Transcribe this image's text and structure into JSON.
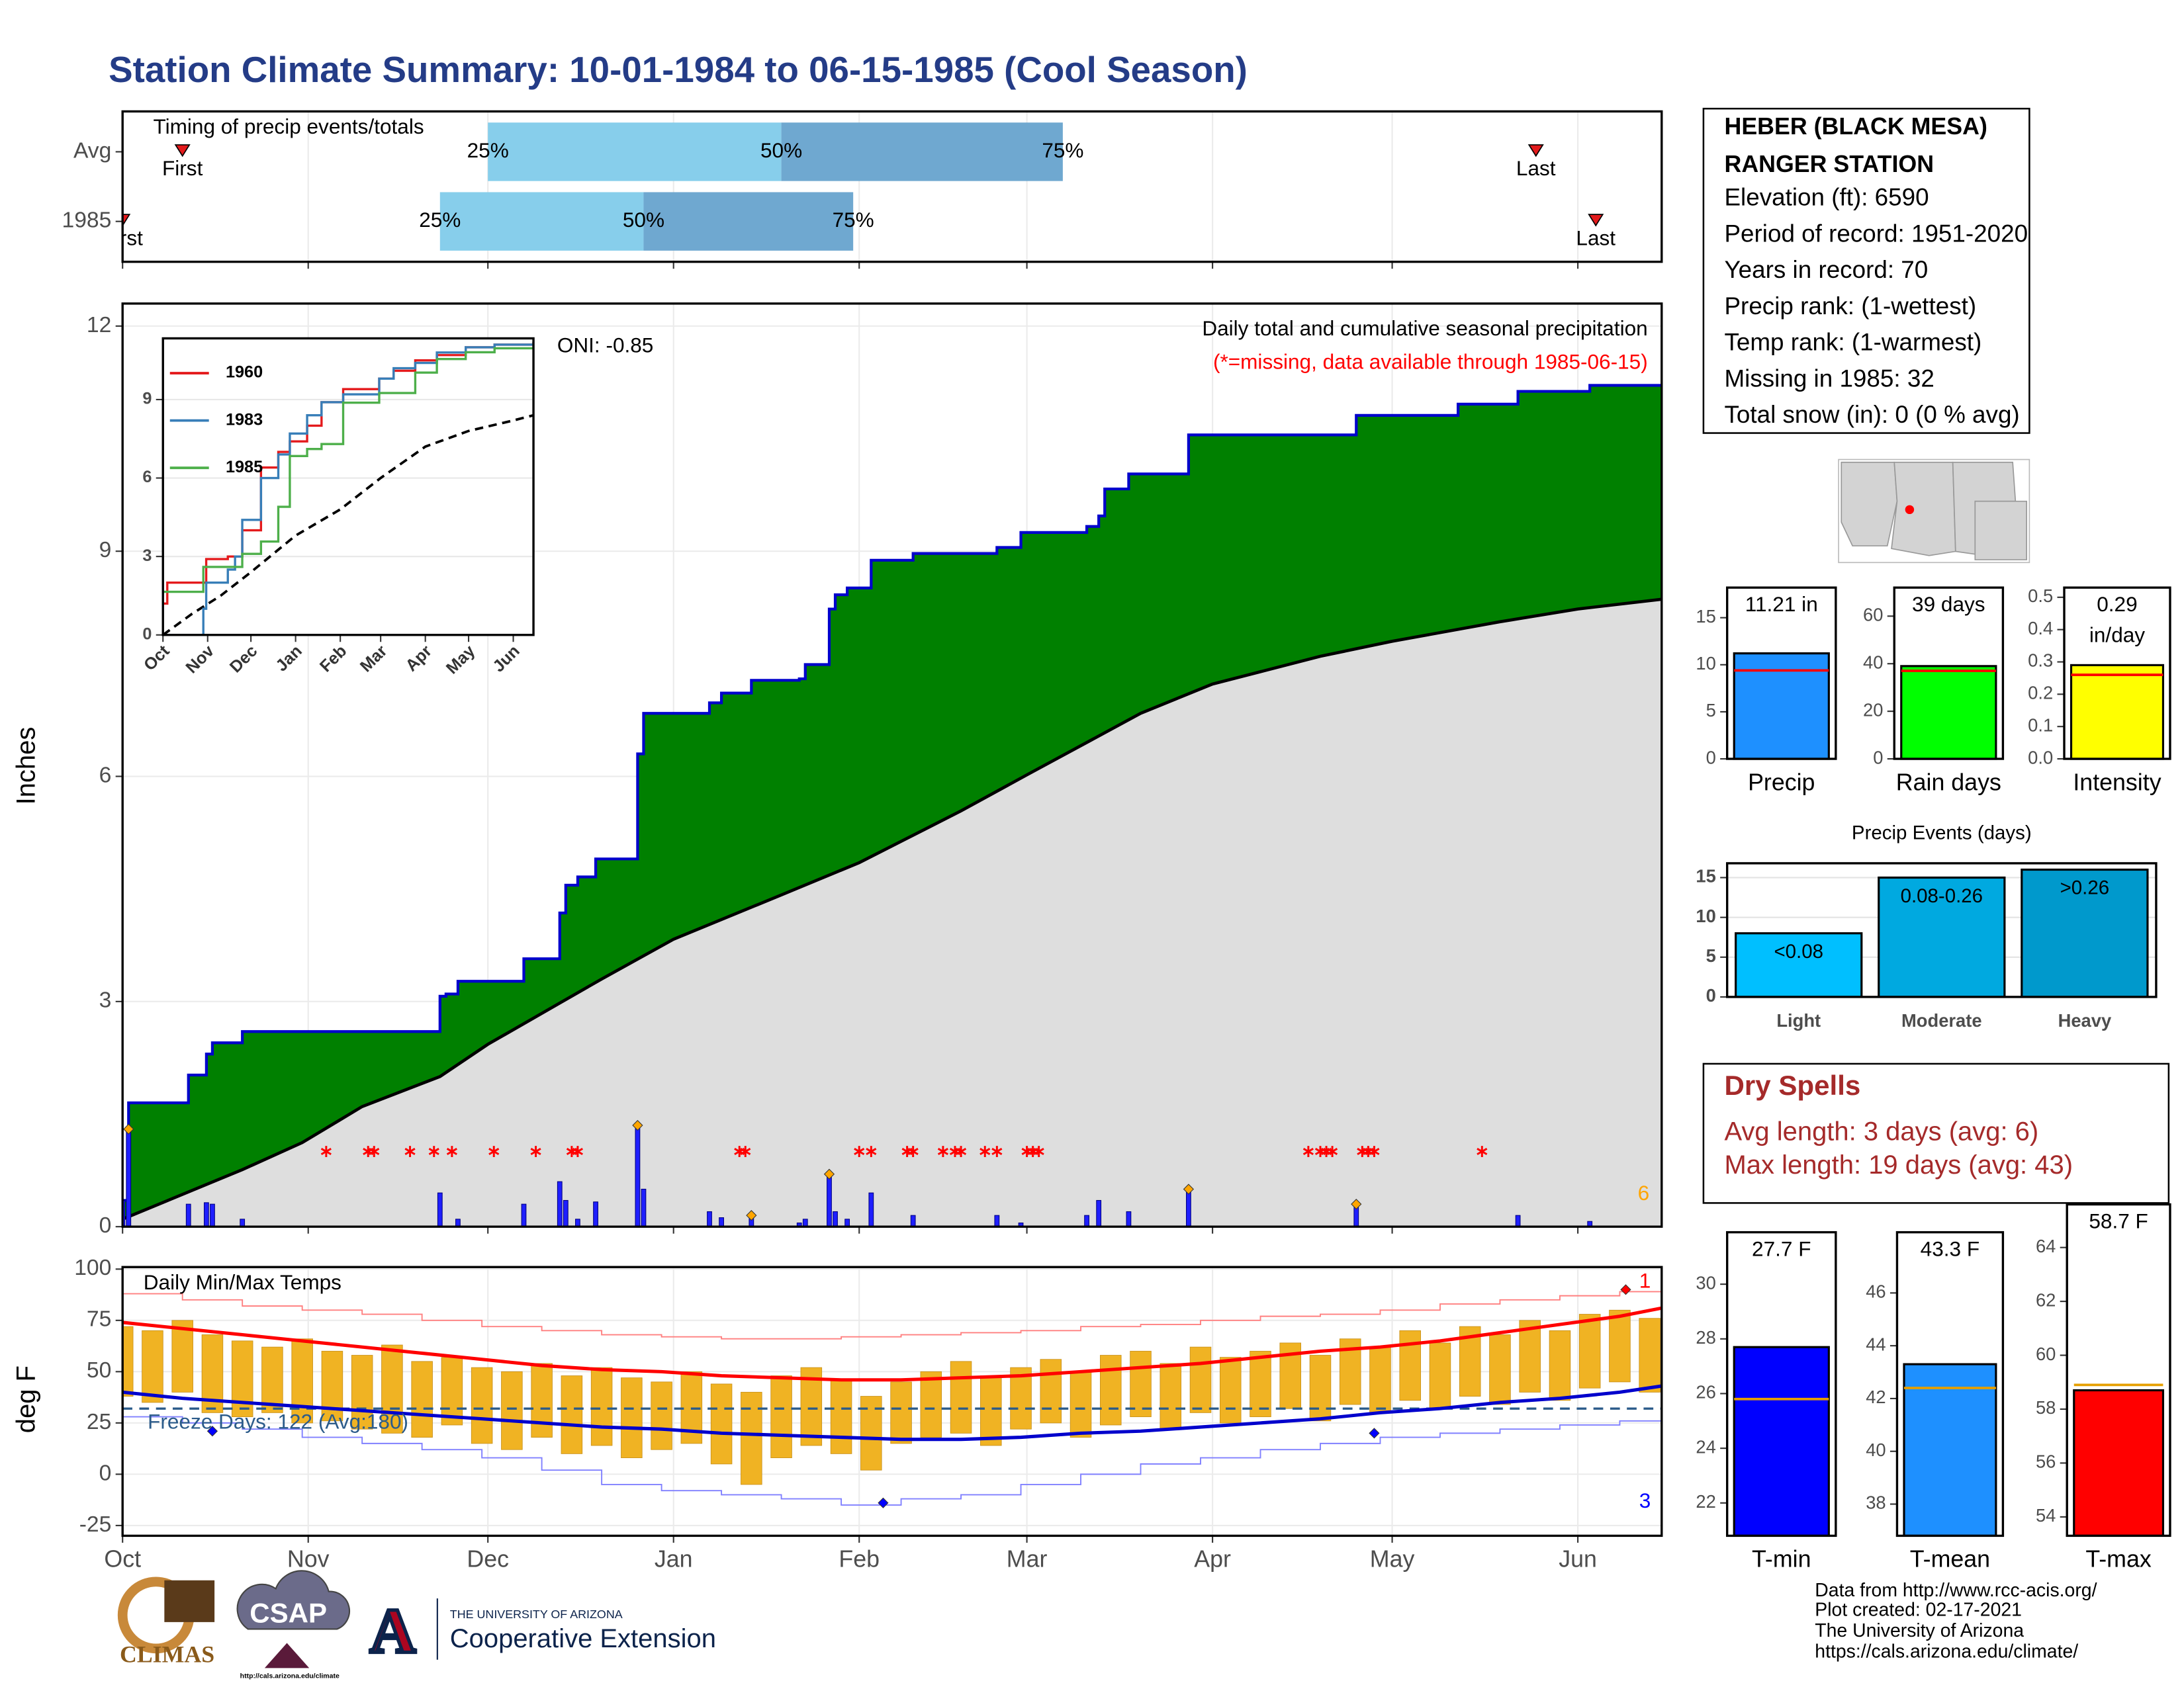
{
  "title": "Station Climate Summary: 10-01-1984 to 06-15-1985 (Cool Season)",
  "station": {
    "name": [
      "HEBER (BLACK MESA)",
      "RANGER STATION"
    ],
    "details": [
      "Elevation (ft): 6590",
      "Period of record: 1951-2020",
      "Years in record: 70",
      "Precip rank:  (1-wettest)",
      "Temp rank:  (1-warmest)",
      "Missing in 1985: 32",
      "Total snow (in): 0 (0 % avg)"
    ]
  },
  "dry_spells": {
    "title": "Dry Spells",
    "lines": [
      "Avg length: 3 days (avg: 6)",
      "Max length: 19 days (avg: 43)"
    ]
  },
  "footer": [
    "Data from http://www.rcc-acis.org/",
    "Plot created: 02-17-2021",
    "The University of Arizona",
    "https://cals.arizona.edu/climate/"
  ],
  "logos": {
    "climas": "CLIMAS",
    "csap": "CSAP",
    "csap_url": "http://cals.arizona.edu/climate",
    "university": "THE UNIVERSITY OF ARIZONA",
    "extension": "Cooperative Extension"
  },
  "chart_data": [
    {
      "type": "timeline",
      "title": "Timing of precip events/totals",
      "xlim": [
        0,
        257
      ],
      "xticks": [
        0,
        31,
        61,
        92,
        123,
        151,
        182,
        212,
        243
      ],
      "grid": true,
      "colors": [
        "#87ceeb",
        "#6fa8d0"
      ],
      "marker_color": "#e31a1c",
      "rows": [
        {
          "name": "Avg",
          "first": 10,
          "last": 236,
          "quartiles": [
            61,
            110,
            157
          ],
          "quartile_labels": [
            "25%",
            "50%",
            "75%"
          ],
          "first_label": "First",
          "last_label": "Last"
        },
        {
          "name": "1985",
          "first": 0,
          "last": 246,
          "quartiles": [
            53,
            87,
            122
          ],
          "quartile_labels": [
            "25%",
            "50%",
            "75%"
          ],
          "first_label": "First",
          "last_label": "Last"
        }
      ]
    },
    {
      "type": "precip",
      "ylabel": "Inches",
      "xlim": [
        0,
        257
      ],
      "xticks": [
        0,
        31,
        61,
        92,
        123,
        151,
        182,
        212,
        243
      ],
      "ylim": [
        0,
        12.3
      ],
      "yticks": [
        0,
        3,
        6,
        9,
        12
      ],
      "grid": true,
      "annotations": {
        "oni": "ONI: -0.85",
        "heading": "Daily total and cumulative seasonal precipitation",
        "missing_note": "(*=missing, data available through 1985-06-15)",
        "event_count": "6"
      },
      "cumulative": {
        "color": "#008000",
        "line_color": "#0000cc",
        "x": [
          0,
          1,
          11,
          14,
          15,
          20,
          53,
          54,
          56,
          67,
          73,
          74,
          76,
          79,
          86,
          87,
          98,
          100,
          105,
          113,
          114,
          118,
          119,
          121,
          125,
          132,
          146,
          150,
          161,
          163,
          164,
          168,
          178,
          206,
          223,
          233,
          245
        ],
        "values": [
          0.35,
          1.65,
          2.02,
          2.3,
          2.45,
          2.6,
          3.07,
          3.1,
          3.27,
          3.57,
          4.18,
          4.55,
          4.66,
          4.9,
          6.3,
          6.84,
          6.98,
          7.11,
          7.28,
          7.3,
          7.49,
          8.23,
          8.42,
          8.51,
          8.88,
          8.97,
          9.05,
          9.25,
          9.33,
          9.47,
          9.83,
          10.03,
          10.55,
          10.81,
          10.96,
          11.13,
          11.21
        ]
      },
      "average": {
        "color": "#dedede",
        "x": [
          0,
          20,
          30,
          40,
          53,
          61,
          80,
          92,
          110,
          123,
          140,
          151,
          170,
          182,
          200,
          212,
          230,
          243,
          257
        ],
        "values": [
          0.1,
          0.76,
          1.12,
          1.6,
          2.0,
          2.43,
          3.3,
          3.83,
          4.42,
          4.85,
          5.54,
          6.02,
          6.84,
          7.23,
          7.6,
          7.8,
          8.06,
          8.23,
          8.36
        ]
      },
      "daily": {
        "color": "#1f1fff",
        "x": [
          0,
          1,
          11,
          14,
          15,
          20,
          53,
          56,
          67,
          73,
          74,
          76,
          79,
          86,
          87,
          98,
          100,
          105,
          113,
          114,
          118,
          119,
          121,
          125,
          132,
          146,
          150,
          161,
          163,
          168,
          178,
          206,
          233,
          245
        ],
        "values": [
          0.35,
          1.3,
          0.3,
          0.32,
          0.3,
          0.1,
          0.45,
          0.1,
          0.3,
          0.6,
          0.35,
          0.1,
          0.33,
          1.35,
          0.5,
          0.2,
          0.12,
          0.15,
          0.05,
          0.1,
          0.7,
          0.2,
          0.1,
          0.45,
          0.15,
          0.15,
          0.05,
          0.15,
          0.35,
          0.2,
          0.5,
          0.3,
          0.15,
          0.07
        ]
      },
      "top_events": {
        "color": "#ffa500",
        "x": [
          1,
          86,
          105,
          118,
          178,
          206
        ],
        "values": [
          1.3,
          1.35,
          0.15,
          0.7,
          0.5,
          0.3
        ]
      },
      "missing": {
        "color": "#ff0000",
        "x": [
          34,
          41,
          42,
          48,
          52,
          55,
          62,
          69,
          75,
          76,
          103,
          104,
          123,
          125,
          131,
          132,
          137,
          139,
          140,
          144,
          146,
          151,
          152,
          153,
          198,
          200,
          201,
          202,
          207,
          208,
          209,
          227
        ]
      }
    },
    {
      "type": "line",
      "xlim": [
        0,
        257
      ],
      "xticks": [
        {
          "value": 0,
          "label": "Oct"
        },
        {
          "value": 31,
          "label": "Nov"
        },
        {
          "value": 61,
          "label": "Dec"
        },
        {
          "value": 92,
          "label": "Jan"
        },
        {
          "value": 123,
          "label": "Feb"
        },
        {
          "value": 151,
          "label": "Mar"
        },
        {
          "value": 182,
          "label": "Apr"
        },
        {
          "value": 212,
          "label": "May"
        },
        {
          "value": 243,
          "label": "Jun"
        }
      ],
      "ylim": [
        0,
        11.34
      ],
      "yticks": [
        0,
        3,
        6,
        9
      ],
      "x": [
        0,
        3,
        28,
        30,
        45,
        50,
        55,
        68,
        80,
        88,
        100,
        110,
        125,
        150,
        160,
        175,
        190,
        210,
        230,
        257
      ],
      "series": [
        {
          "name": "1960",
          "color": "#e41a1c",
          "values": [
            1.2,
            2.0,
            2.0,
            2.9,
            3.0,
            3.0,
            4.0,
            6.4,
            7.0,
            7.4,
            8.0,
            8.9,
            9.4,
            9.8,
            10.1,
            10.5,
            10.7,
            11.0,
            11.1,
            11.2
          ]
        },
        {
          "name": "1983",
          "color": "#377eb8",
          "values": [
            0,
            0,
            1.0,
            2.0,
            2.5,
            3.0,
            4.4,
            6.0,
            6.9,
            7.7,
            8.4,
            8.9,
            9.2,
            9.8,
            10.2,
            10.4,
            10.8,
            11.0,
            11.1,
            11.2
          ]
        },
        {
          "name": "1985",
          "color": "#4daf4a",
          "values": [
            1.65,
            1.65,
            2.6,
            2.6,
            2.6,
            2.6,
            3.1,
            3.57,
            4.9,
            6.84,
            7.11,
            7.3,
            8.88,
            9.25,
            9.25,
            10.03,
            10.55,
            10.81,
            10.96,
            11.21
          ]
        }
      ],
      "average": {
        "color": "#000000",
        "x": [
          0,
          20,
          40,
          61,
          92,
          123,
          151,
          182,
          212,
          243,
          257
        ],
        "values": [
          0,
          0.8,
          1.5,
          2.4,
          3.8,
          4.8,
          6.0,
          7.2,
          7.8,
          8.2,
          8.4
        ]
      }
    },
    {
      "type": "temperature",
      "ylabel": "deg F",
      "title": "Daily Min/Max Temps",
      "freeze_label": "Freeze Days: 122 (Avg:180)",
      "freeze": 32,
      "freeze_color": "#2b5b8a",
      "xlim": [
        0,
        257
      ],
      "xticks": [
        {
          "value": 0,
          "label": "Oct"
        },
        {
          "value": 31,
          "label": "Nov"
        },
        {
          "value": 61,
          "label": "Dec"
        },
        {
          "value": 92,
          "label": "Jan"
        },
        {
          "value": 123,
          "label": "Feb"
        },
        {
          "value": 151,
          "label": "Mar"
        },
        {
          "value": 182,
          "label": "Apr"
        },
        {
          "value": 212,
          "label": "May"
        },
        {
          "value": 243,
          "label": "Jun"
        }
      ],
      "ylim": [
        -30,
        101
      ],
      "yticks": [
        -25,
        0,
        25,
        50,
        75,
        100
      ],
      "grid": true,
      "daily": {
        "color": "#f0b323",
        "x": [
          0,
          5,
          10,
          15,
          20,
          25,
          30,
          35,
          40,
          45,
          50,
          55,
          60,
          65,
          70,
          75,
          80,
          85,
          90,
          95,
          100,
          105,
          110,
          115,
          120,
          125,
          130,
          135,
          140,
          145,
          150,
          155,
          160,
          165,
          170,
          175,
          180,
          185,
          190,
          195,
          200,
          205,
          210,
          215,
          220,
          225,
          230,
          235,
          240,
          245,
          250,
          255
        ],
        "max": [
          72,
          70,
          75,
          68,
          65,
          62,
          66,
          60,
          58,
          63,
          55,
          57,
          52,
          50,
          54,
          48,
          52,
          47,
          45,
          50,
          44,
          40,
          48,
          52,
          46,
          38,
          45,
          50,
          55,
          48,
          52,
          56,
          50,
          58,
          60,
          54,
          62,
          57,
          60,
          64,
          58,
          66,
          62,
          70,
          64,
          72,
          68,
          75,
          70,
          78,
          80,
          76
        ],
        "min": [
          38,
          35,
          40,
          30,
          28,
          30,
          25,
          26,
          22,
          20,
          18,
          24,
          15,
          12,
          18,
          10,
          14,
          8,
          12,
          15,
          5,
          -5,
          8,
          14,
          10,
          2,
          15,
          18,
          20,
          14,
          22,
          25,
          18,
          24,
          28,
          22,
          30,
          25,
          28,
          32,
          26,
          34,
          30,
          36,
          32,
          38,
          34,
          40,
          36,
          42,
          45,
          40
        ]
      },
      "normals": {
        "x": [
          0,
          10,
          20,
          30,
          40,
          50,
          60,
          70,
          80,
          90,
          100,
          110,
          120,
          130,
          140,
          150,
          160,
          170,
          180,
          190,
          200,
          210,
          220,
          230,
          240,
          250,
          257
        ],
        "max": {
          "color": "#ff0000",
          "values": [
            74,
            71,
            68,
            65,
            62,
            59,
            56,
            53,
            51,
            50,
            48,
            47,
            46,
            46,
            47,
            48,
            50,
            52,
            54,
            57,
            60,
            62,
            65,
            69,
            73,
            77,
            81
          ]
        },
        "min": {
          "color": "#0000cc",
          "values": [
            40,
            37,
            35,
            33,
            31,
            29,
            27,
            25,
            23,
            22,
            20,
            19,
            18,
            17,
            17,
            18,
            20,
            21,
            23,
            25,
            27,
            30,
            32,
            35,
            37,
            40,
            43
          ]
        }
      },
      "records": {
        "x": [
          0,
          10,
          20,
          30,
          40,
          50,
          60,
          70,
          80,
          90,
          100,
          110,
          120,
          130,
          140,
          150,
          160,
          170,
          180,
          190,
          200,
          210,
          220,
          230,
          240,
          250,
          257
        ],
        "max": {
          "color": "#ff8080",
          "values": [
            88,
            85,
            82,
            80,
            78,
            75,
            72,
            70,
            68,
            67,
            66,
            66,
            67,
            68,
            69,
            70,
            72,
            73,
            75,
            77,
            78,
            80,
            83,
            85,
            87,
            89,
            92
          ]
        },
        "min": {
          "color": "#8080ff",
          "values": [
            28,
            25,
            22,
            18,
            15,
            12,
            8,
            2,
            -5,
            -8,
            -10,
            -12,
            -15,
            -12,
            -10,
            -5,
            0,
            5,
            8,
            12,
            15,
            18,
            20,
            22,
            24,
            26,
            28
          ]
        }
      },
      "record_max_days": {
        "color": "#ff0000",
        "x": [
          251
        ],
        "values": [
          90
        ],
        "count_label": "1"
      },
      "record_min_days": {
        "color": "#0000ff",
        "x": [
          15,
          127,
          209
        ],
        "values": [
          21,
          -14,
          20
        ],
        "count_label": "3"
      }
    },
    {
      "type": "bar",
      "categories": [
        "Precip"
      ],
      "values": [
        11.21
      ],
      "value_labels": [
        "11.21 in"
      ],
      "color": "#1e90ff",
      "ylim": [
        0,
        18.2
      ],
      "yticks": [
        0,
        5,
        10,
        15
      ],
      "average": 9.4,
      "average_color": "#ff0000"
    },
    {
      "type": "bar",
      "categories": [
        "Rain days"
      ],
      "values": [
        39
      ],
      "value_labels": [
        "39 days"
      ],
      "color": "#00ff00",
      "ylim": [
        0,
        72
      ],
      "yticks": [
        0,
        20,
        40,
        60
      ],
      "average": 37,
      "average_color": "#ff0000"
    },
    {
      "type": "bar",
      "categories": [
        "Intensity"
      ],
      "values": [
        0.29
      ],
      "value_labels": [
        "0.29 in/day"
      ],
      "color": "#ffff00",
      "ylim": [
        0,
        0.53
      ],
      "yticks": [
        {
          "value": 0,
          "label": "0.0"
        },
        0.1,
        0.2,
        0.3,
        0.4,
        0.5
      ],
      "average": 0.26,
      "average_color": "#ff0000"
    },
    {
      "type": "bar",
      "title": "Precip Events (days)",
      "categories": [
        "Light",
        "Moderate",
        "Heavy"
      ],
      "values": [
        8,
        15,
        16
      ],
      "bin_labels": [
        "<0.08",
        "0.08-0.26",
        ">0.26"
      ],
      "colors": [
        "#00bfff",
        "#00a9e0",
        "#0099cc"
      ],
      "ylim": [
        0,
        16.8
      ],
      "yticks": [
        0,
        5,
        10,
        15
      ],
      "grid": true
    },
    {
      "type": "bar",
      "categories": [
        "T-min"
      ],
      "values": [
        27.7
      ],
      "value_labels": [
        "27.7 F"
      ],
      "color": "#0000ff",
      "ylim": [
        20.8,
        31.9
      ],
      "yticks": [
        22,
        24,
        26,
        28,
        30
      ],
      "average": 25.8,
      "average_color": "#e69f00"
    },
    {
      "type": "bar",
      "categories": [
        "T-mean"
      ],
      "values": [
        43.3
      ],
      "value_labels": [
        "43.3 F"
      ],
      "color": "#1e90ff",
      "ylim": [
        36.8,
        48.3
      ],
      "yticks": [
        38,
        40,
        42,
        44,
        46
      ],
      "average": 42.4,
      "average_color": "#e69f00"
    },
    {
      "type": "bar",
      "categories": [
        "T-max"
      ],
      "values": [
        58.7
      ],
      "value_labels": [
        "58.7 F"
      ],
      "color": "#ff0000",
      "ylim": [
        53.3,
        65.6
      ],
      "yticks": [
        54,
        56,
        58,
        60,
        62,
        64
      ],
      "average": 58.9,
      "average_color": "#e69f00"
    }
  ]
}
